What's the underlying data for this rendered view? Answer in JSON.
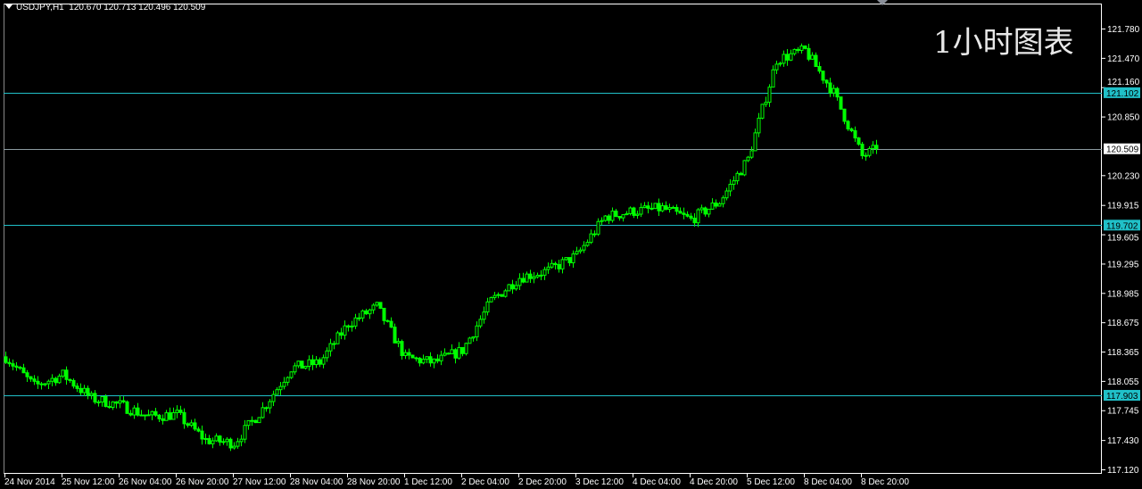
{
  "header": {
    "symbol": "USDJPY,H1",
    "open": "120.670",
    "high": "120.713",
    "low": "120.496",
    "close": "120.509"
  },
  "watermark": "1小时图表",
  "colors": {
    "background": "#000000",
    "candle": "#00ff00",
    "hline": "#20c0c8",
    "price_line": "#8c9aa0",
    "axis": "#ffffff"
  },
  "chart_data": {
    "type": "candlestick",
    "timeframe": "H1",
    "y_ticks": [
      "121.780",
      "121.470",
      "121.160",
      "120.850",
      "120.230",
      "119.915",
      "119.605",
      "119.295",
      "118.985",
      "118.675",
      "118.365",
      "118.055",
      "117.745",
      "117.430",
      "117.120"
    ],
    "ylim": [
      117.12,
      121.78
    ],
    "x_ticks": [
      "24 Nov 2014",
      "25 Nov 12:00",
      "26 Nov 04:00",
      "26 Nov 20:00",
      "27 Nov 12:00",
      "28 Nov 04:00",
      "28 Nov 20:00",
      "1 Dec 12:00",
      "2 Dec 04:00",
      "2 Dec 20:00",
      "3 Dec 12:00",
      "4 Dec 04:00",
      "4 Dec 20:00",
      "5 Dec 12:00",
      "8 Dec 04:00",
      "8 Dec 20:00"
    ],
    "approx_closes": [
      {
        "t": "24 Nov 20:00",
        "close": 118.31
      },
      {
        "t": "25 Nov 04:00",
        "close": 118.0
      },
      {
        "t": "25 Nov 12:00",
        "close": 118.12
      },
      {
        "t": "25 Nov 20:00",
        "close": 117.87
      },
      {
        "t": "26 Nov 04:00",
        "close": 117.8
      },
      {
        "t": "26 Nov 12:00",
        "close": 117.68
      },
      {
        "t": "26 Nov 20:00",
        "close": 117.7
      },
      {
        "t": "27 Nov 04:00",
        "close": 117.43
      },
      {
        "t": "27 Nov 12:00",
        "close": 117.4
      },
      {
        "t": "27 Nov 20:00",
        "close": 117.76
      },
      {
        "t": "28 Nov 04:00",
        "close": 118.19
      },
      {
        "t": "28 Nov 12:00",
        "close": 118.25
      },
      {
        "t": "28 Nov 20:00",
        "close": 118.66
      },
      {
        "t": "1 Dec 04:00",
        "close": 118.84
      },
      {
        "t": "1 Dec 12:00",
        "close": 118.3
      },
      {
        "t": "1 Dec 20:00",
        "close": 118.25
      },
      {
        "t": "2 Dec 04:00",
        "close": 118.38
      },
      {
        "t": "2 Dec 12:00",
        "close": 118.9
      },
      {
        "t": "2 Dec 20:00",
        "close": 119.15
      },
      {
        "t": "3 Dec 04:00",
        "close": 119.22
      },
      {
        "t": "3 Dec 12:00",
        "close": 119.38
      },
      {
        "t": "3 Dec 20:00",
        "close": 119.79
      },
      {
        "t": "4 Dec 04:00",
        "close": 119.85
      },
      {
        "t": "4 Dec 12:00",
        "close": 119.88
      },
      {
        "t": "4 Dec 20:00",
        "close": 119.76
      },
      {
        "t": "5 Dec 04:00",
        "close": 119.95
      },
      {
        "t": "5 Dec 12:00",
        "close": 120.4
      },
      {
        "t": "5 Dec 20:00",
        "close": 121.45
      },
      {
        "t": "8 Dec 04:00",
        "close": 121.55
      },
      {
        "t": "8 Dec 12:00",
        "close": 121.1
      },
      {
        "t": "8 Dec 20:00",
        "close": 120.43
      },
      {
        "t": "9 Dec 00:00",
        "close": 120.509
      }
    ],
    "horizontal_lines": [
      {
        "price": "121.102",
        "type": "level"
      },
      {
        "price": "119.702",
        "type": "level"
      },
      {
        "price": "117.903",
        "type": "level"
      },
      {
        "price": "120.509",
        "type": "bid"
      }
    ],
    "grid": false
  }
}
